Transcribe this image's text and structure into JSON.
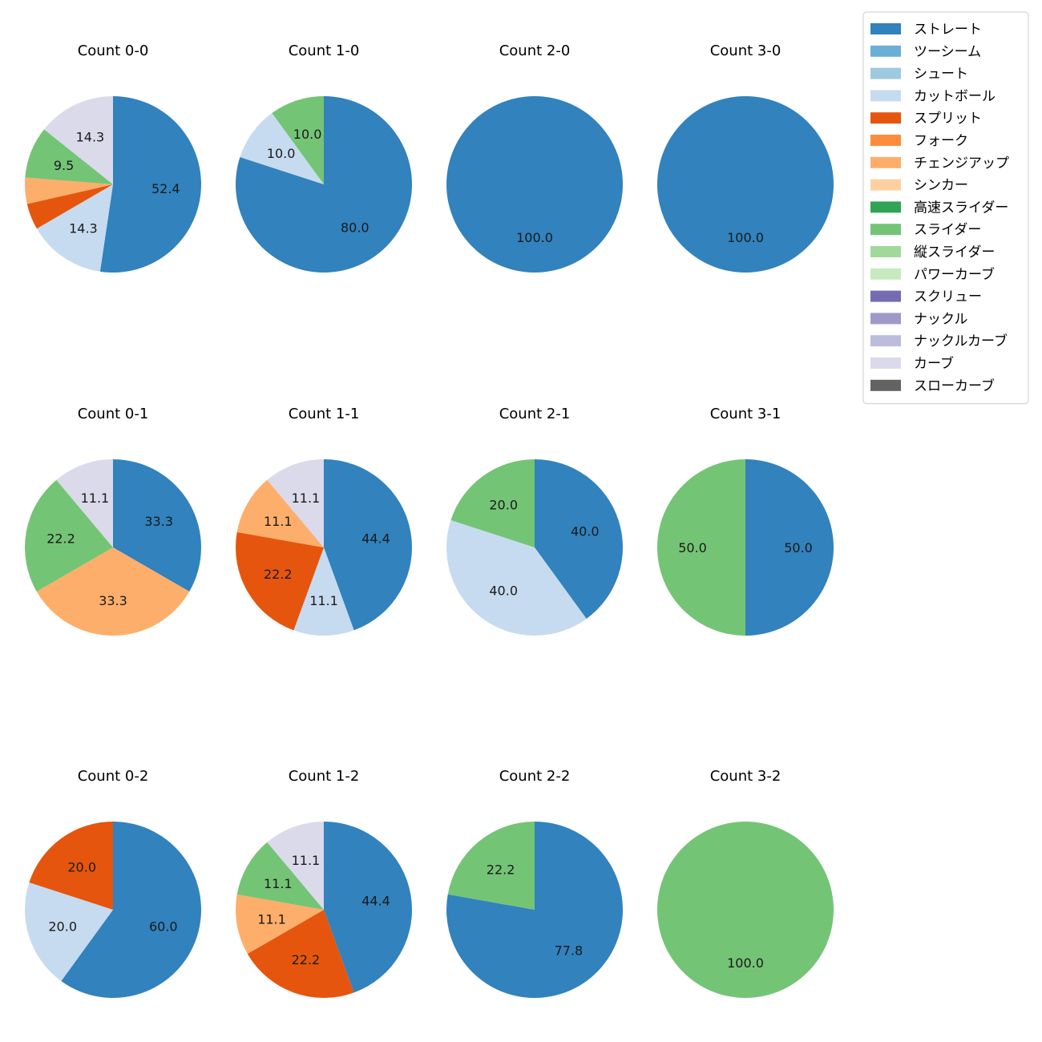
{
  "chart_data": {
    "type": "pie",
    "layout": "grid of 12 pie charts, 3 rows x 4 columns, shared legend top-right",
    "categories": [
      {
        "name": "ストレート",
        "color": "#3182bd"
      },
      {
        "name": "ツーシーム",
        "color": "#6baed6"
      },
      {
        "name": "シュート",
        "color": "#9ecae1"
      },
      {
        "name": "カットボール",
        "color": "#c6dbef"
      },
      {
        "name": "スプリット",
        "color": "#e6550d"
      },
      {
        "name": "フォーク",
        "color": "#fd8d3c"
      },
      {
        "name": "チェンジアップ",
        "color": "#fdae6b"
      },
      {
        "name": "シンカー",
        "color": "#fdd0a2"
      },
      {
        "name": "高速スライダー",
        "color": "#31a354"
      },
      {
        "name": "スライダー",
        "color": "#74c476"
      },
      {
        "name": "縦スライダー",
        "color": "#a1d99b"
      },
      {
        "name": "パワーカーブ",
        "color": "#c7e9c0"
      },
      {
        "name": "スクリュー",
        "color": "#756bb1"
      },
      {
        "name": "ナックル",
        "color": "#9e9ac8"
      },
      {
        "name": "ナックルカーブ",
        "color": "#bcbddc"
      },
      {
        "name": "カーブ",
        "color": "#dadaeb"
      },
      {
        "name": "スローカーブ",
        "color": "#636363"
      }
    ],
    "legend_position": "top-right",
    "pies": [
      {
        "title": "Count 0-0",
        "slices": [
          {
            "category": "ストレート",
            "value": 52.4,
            "label": "52.4"
          },
          {
            "category": "カットボール",
            "value": 14.3,
            "label": "14.3"
          },
          {
            "category": "スプリット",
            "value": 4.8,
            "label": ""
          },
          {
            "category": "チェンジアップ",
            "value": 4.8,
            "label": ""
          },
          {
            "category": "スライダー",
            "value": 9.5,
            "label": "9.5"
          },
          {
            "category": "カーブ",
            "value": 14.3,
            "label": "14.3"
          }
        ]
      },
      {
        "title": "Count 1-0",
        "slices": [
          {
            "category": "ストレート",
            "value": 80.0,
            "label": "80.0"
          },
          {
            "category": "カットボール",
            "value": 10.0,
            "label": "10.0"
          },
          {
            "category": "スライダー",
            "value": 10.0,
            "label": "10.0"
          }
        ]
      },
      {
        "title": "Count 2-0",
        "slices": [
          {
            "category": "ストレート",
            "value": 100.0,
            "label": "100.0"
          }
        ]
      },
      {
        "title": "Count 3-0",
        "slices": [
          {
            "category": "ストレート",
            "value": 100.0,
            "label": "100.0"
          }
        ]
      },
      {
        "title": "Count 0-1",
        "slices": [
          {
            "category": "ストレート",
            "value": 33.3,
            "label": "33.3"
          },
          {
            "category": "チェンジアップ",
            "value": 33.3,
            "label": "33.3"
          },
          {
            "category": "スライダー",
            "value": 22.2,
            "label": "22.2"
          },
          {
            "category": "カーブ",
            "value": 11.1,
            "label": "11.1"
          }
        ]
      },
      {
        "title": "Count 1-1",
        "slices": [
          {
            "category": "ストレート",
            "value": 44.4,
            "label": "44.4"
          },
          {
            "category": "カットボール",
            "value": 11.1,
            "label": "11.1"
          },
          {
            "category": "スプリット",
            "value": 22.2,
            "label": "22.2"
          },
          {
            "category": "チェンジアップ",
            "value": 11.1,
            "label": "11.1"
          },
          {
            "category": "カーブ",
            "value": 11.1,
            "label": "11.1"
          }
        ]
      },
      {
        "title": "Count 2-1",
        "slices": [
          {
            "category": "ストレート",
            "value": 40.0,
            "label": "40.0"
          },
          {
            "category": "カットボール",
            "value": 40.0,
            "label": "40.0"
          },
          {
            "category": "スライダー",
            "value": 20.0,
            "label": "20.0"
          }
        ]
      },
      {
        "title": "Count 3-1",
        "slices": [
          {
            "category": "ストレート",
            "value": 50.0,
            "label": "50.0"
          },
          {
            "category": "スライダー",
            "value": 50.0,
            "label": "50.0"
          }
        ]
      },
      {
        "title": "Count 0-2",
        "slices": [
          {
            "category": "ストレート",
            "value": 60.0,
            "label": "60.0"
          },
          {
            "category": "カットボール",
            "value": 20.0,
            "label": "20.0"
          },
          {
            "category": "スプリット",
            "value": 20.0,
            "label": "20.0"
          }
        ]
      },
      {
        "title": "Count 1-2",
        "slices": [
          {
            "category": "ストレート",
            "value": 44.4,
            "label": "44.4"
          },
          {
            "category": "スプリット",
            "value": 22.2,
            "label": "22.2"
          },
          {
            "category": "チェンジアップ",
            "value": 11.1,
            "label": "11.1"
          },
          {
            "category": "スライダー",
            "value": 11.1,
            "label": "11.1"
          },
          {
            "category": "カーブ",
            "value": 11.1,
            "label": "11.1"
          }
        ]
      },
      {
        "title": "Count 2-2",
        "slices": [
          {
            "category": "ストレート",
            "value": 77.8,
            "label": "77.8"
          },
          {
            "category": "スライダー",
            "value": 22.2,
            "label": "22.2"
          }
        ]
      },
      {
        "title": "Count 3-2",
        "slices": [
          {
            "category": "スライダー",
            "value": 100.0,
            "label": "100.0"
          }
        ]
      }
    ]
  }
}
